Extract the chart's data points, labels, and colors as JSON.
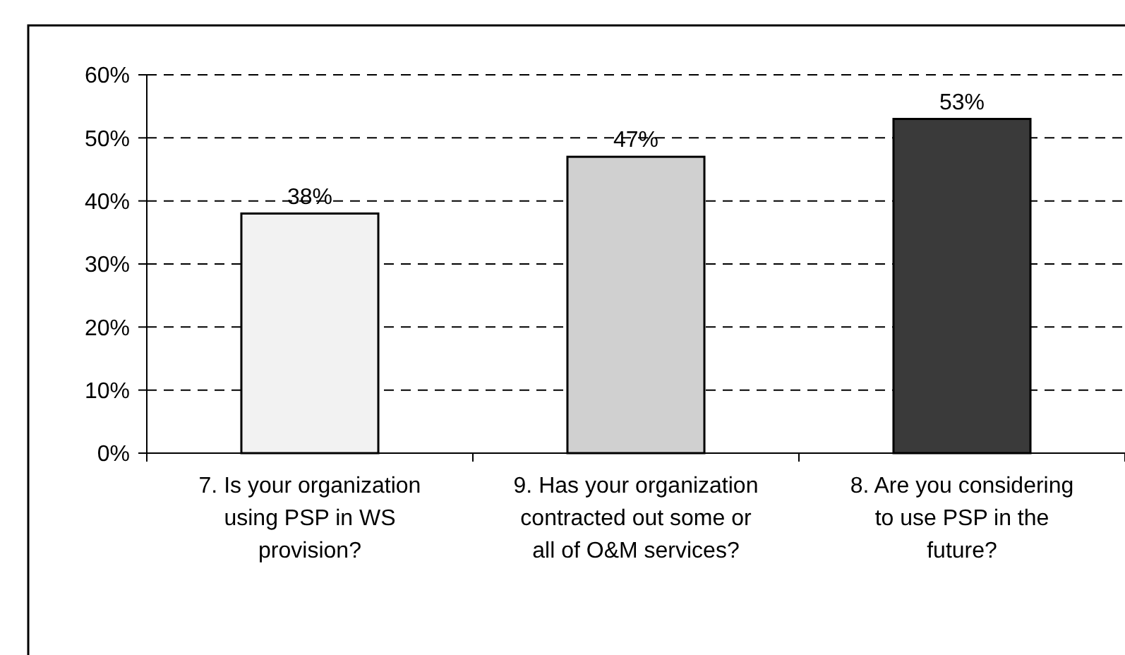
{
  "chart_data": {
    "type": "bar",
    "categories": [
      "7. Is your organization using PSP in WS provision?",
      "9. Has your organization contracted out some or all of O&M services?",
      "8. Are you considering to use PSP in the future?"
    ],
    "values": [
      38,
      47,
      53
    ],
    "value_labels": [
      "38%",
      "47%",
      "53%"
    ],
    "colors": [
      "#f2f2f2",
      "#d0d0d0",
      "#3a3a3a"
    ],
    "ylim": [
      0,
      60
    ],
    "yticks": [
      {
        "value": 0,
        "label": "0%"
      },
      {
        "value": 10,
        "label": "10%"
      },
      {
        "value": 20,
        "label": "20%"
      },
      {
        "value": 30,
        "label": "30%"
      },
      {
        "value": 40,
        "label": "40%"
      },
      {
        "value": 50,
        "label": "50%"
      },
      {
        "value": 60,
        "label": "60%"
      }
    ],
    "grid": "y"
  }
}
